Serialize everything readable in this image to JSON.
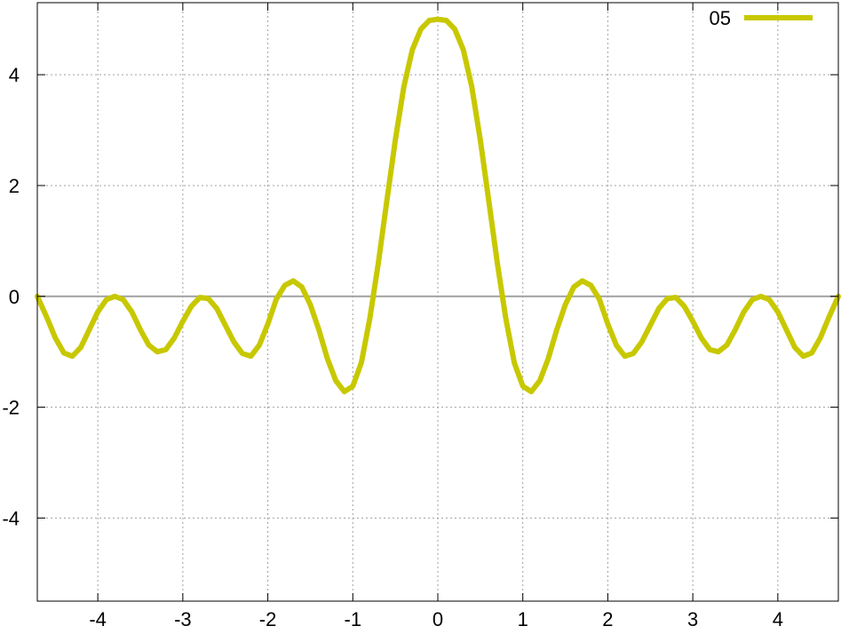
{
  "chart_data": {
    "type": "line",
    "title": "",
    "xlabel": "",
    "ylabel": "",
    "xlim": [
      -4.712,
      4.712
    ],
    "ylim": [
      -5.5,
      5.3
    ],
    "x_ticks": [
      -4,
      -3,
      -2,
      -1,
      0,
      1,
      2,
      3,
      4
    ],
    "y_ticks": [
      -4,
      -2,
      0,
      2,
      4
    ],
    "grid": true,
    "zero_line": true,
    "legend_position": "top-right",
    "colors": {
      "series": "#c8c800",
      "grid": "#a0a0a0",
      "zero_line": "#a0a0a0",
      "axis": "#000000"
    },
    "series": [
      {
        "name": "05",
        "color": "#c8c800",
        "points": [
          [
            -4.712,
            0.0
          ],
          [
            -4.6,
            -0.38
          ],
          [
            -4.5,
            -0.75
          ],
          [
            -4.4,
            -1.02
          ],
          [
            -4.3,
            -1.08
          ],
          [
            -4.2,
            -0.92
          ],
          [
            -4.1,
            -0.6
          ],
          [
            -4.0,
            -0.28
          ],
          [
            -3.9,
            -0.06
          ],
          [
            -3.8,
            0.0
          ],
          [
            -3.7,
            -0.06
          ],
          [
            -3.6,
            -0.28
          ],
          [
            -3.5,
            -0.6
          ],
          [
            -3.4,
            -0.88
          ],
          [
            -3.3,
            -1.0
          ],
          [
            -3.2,
            -0.96
          ],
          [
            -3.1,
            -0.75
          ],
          [
            -3.0,
            -0.45
          ],
          [
            -2.9,
            -0.18
          ],
          [
            -2.8,
            -0.02
          ],
          [
            -2.7,
            -0.04
          ],
          [
            -2.6,
            -0.22
          ],
          [
            -2.5,
            -0.52
          ],
          [
            -2.4,
            -0.82
          ],
          [
            -2.3,
            -1.03
          ],
          [
            -2.2,
            -1.08
          ],
          [
            -2.1,
            -0.88
          ],
          [
            -2.0,
            -0.5
          ],
          [
            -1.9,
            -0.05
          ],
          [
            -1.8,
            0.2
          ],
          [
            -1.7,
            0.28
          ],
          [
            -1.6,
            0.17
          ],
          [
            -1.5,
            -0.15
          ],
          [
            -1.4,
            -0.6
          ],
          [
            -1.3,
            -1.12
          ],
          [
            -1.2,
            -1.52
          ],
          [
            -1.1,
            -1.72
          ],
          [
            -1.0,
            -1.62
          ],
          [
            -0.9,
            -1.2
          ],
          [
            -0.8,
            -0.4
          ],
          [
            -0.7,
            0.6
          ],
          [
            -0.6,
            1.72
          ],
          [
            -0.5,
            2.82
          ],
          [
            -0.4,
            3.78
          ],
          [
            -0.3,
            4.45
          ],
          [
            -0.2,
            4.82
          ],
          [
            -0.1,
            4.98
          ],
          [
            0.0,
            5.0
          ],
          [
            0.1,
            4.98
          ],
          [
            0.2,
            4.82
          ],
          [
            0.3,
            4.45
          ],
          [
            0.4,
            3.78
          ],
          [
            0.5,
            2.82
          ],
          [
            0.6,
            1.72
          ],
          [
            0.7,
            0.6
          ],
          [
            0.8,
            -0.4
          ],
          [
            0.9,
            -1.2
          ],
          [
            1.0,
            -1.62
          ],
          [
            1.1,
            -1.72
          ],
          [
            1.2,
            -1.52
          ],
          [
            1.3,
            -1.12
          ],
          [
            1.4,
            -0.6
          ],
          [
            1.5,
            -0.15
          ],
          [
            1.6,
            0.17
          ],
          [
            1.7,
            0.28
          ],
          [
            1.8,
            0.2
          ],
          [
            1.9,
            -0.05
          ],
          [
            2.0,
            -0.5
          ],
          [
            2.1,
            -0.88
          ],
          [
            2.2,
            -1.08
          ],
          [
            2.3,
            -1.03
          ],
          [
            2.4,
            -0.82
          ],
          [
            2.5,
            -0.52
          ],
          [
            2.6,
            -0.22
          ],
          [
            2.7,
            -0.04
          ],
          [
            2.8,
            -0.02
          ],
          [
            2.9,
            -0.18
          ],
          [
            3.0,
            -0.45
          ],
          [
            3.1,
            -0.75
          ],
          [
            3.2,
            -0.96
          ],
          [
            3.3,
            -1.0
          ],
          [
            3.4,
            -0.88
          ],
          [
            3.5,
            -0.6
          ],
          [
            3.6,
            -0.28
          ],
          [
            3.7,
            -0.06
          ],
          [
            3.8,
            0.0
          ],
          [
            3.9,
            -0.06
          ],
          [
            4.0,
            -0.28
          ],
          [
            4.1,
            -0.6
          ],
          [
            4.2,
            -0.92
          ],
          [
            4.3,
            -1.08
          ],
          [
            4.4,
            -1.02
          ],
          [
            4.5,
            -0.75
          ],
          [
            4.6,
            -0.38
          ],
          [
            4.712,
            0.0
          ]
        ]
      }
    ]
  }
}
